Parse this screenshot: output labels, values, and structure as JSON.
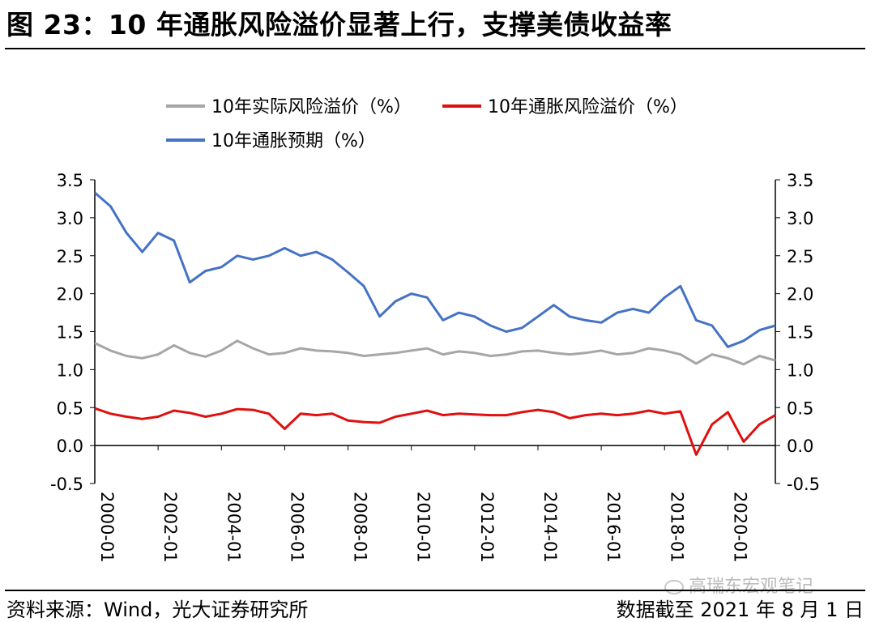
{
  "title": "图 23：10 年通胀风险溢价显著上行，支撑美债收益率",
  "source": "资料来源：Wind，光大证券研究所",
  "date_note": "数据截至 2021 年 8 月 1 日",
  "watermark": "高瑞东宏观笔记",
  "chart_data": {
    "type": "line",
    "x": [
      "2000-01",
      "2000-07",
      "2001-01",
      "2001-07",
      "2002-01",
      "2002-07",
      "2003-01",
      "2003-07",
      "2004-01",
      "2004-07",
      "2005-01",
      "2005-07",
      "2006-01",
      "2006-07",
      "2007-01",
      "2007-07",
      "2008-01",
      "2008-07",
      "2009-01",
      "2009-07",
      "2010-01",
      "2010-07",
      "2011-01",
      "2011-07",
      "2012-01",
      "2012-07",
      "2013-01",
      "2013-07",
      "2014-01",
      "2014-07",
      "2015-01",
      "2015-07",
      "2016-01",
      "2016-07",
      "2017-01",
      "2017-07",
      "2018-01",
      "2018-07",
      "2019-01",
      "2019-07",
      "2020-01",
      "2020-07",
      "2021-01",
      "2021-07"
    ],
    "x_ticks": [
      "2000-01",
      "2002-01",
      "2004-01",
      "2006-01",
      "2008-01",
      "2010-01",
      "2012-01",
      "2014-01",
      "2016-01",
      "2018-01",
      "2020-01"
    ],
    "series": [
      {
        "name": "10年实际风险溢价（%）",
        "color": "#a6a6a6",
        "values": [
          1.35,
          1.25,
          1.18,
          1.15,
          1.2,
          1.32,
          1.22,
          1.17,
          1.25,
          1.38,
          1.28,
          1.2,
          1.22,
          1.28,
          1.25,
          1.24,
          1.22,
          1.18,
          1.2,
          1.22,
          1.25,
          1.28,
          1.2,
          1.24,
          1.22,
          1.18,
          1.2,
          1.24,
          1.25,
          1.22,
          1.2,
          1.22,
          1.25,
          1.2,
          1.22,
          1.28,
          1.25,
          1.2,
          1.08,
          1.2,
          1.15,
          1.07,
          1.18,
          1.12
        ]
      },
      {
        "name": "10年通胀风险溢价（%）",
        "color": "#e01010",
        "values": [
          0.49,
          0.42,
          0.38,
          0.35,
          0.38,
          0.46,
          0.43,
          0.38,
          0.42,
          0.48,
          0.47,
          0.42,
          0.22,
          0.42,
          0.4,
          0.42,
          0.33,
          0.31,
          0.3,
          0.38,
          0.42,
          0.46,
          0.4,
          0.42,
          0.41,
          0.4,
          0.4,
          0.44,
          0.47,
          0.44,
          0.36,
          0.4,
          0.42,
          0.4,
          0.42,
          0.46,
          0.42,
          0.45,
          -0.12,
          0.28,
          0.44,
          0.05,
          0.28,
          0.4
        ]
      },
      {
        "name": "10年通胀预期（%）",
        "color": "#4472c4",
        "values": [
          3.33,
          3.15,
          2.8,
          2.55,
          2.8,
          2.7,
          2.15,
          2.3,
          2.35,
          2.5,
          2.45,
          2.5,
          2.6,
          2.5,
          2.55,
          2.45,
          2.28,
          2.1,
          1.7,
          1.9,
          2.0,
          1.95,
          1.65,
          1.75,
          1.7,
          1.58,
          1.5,
          1.55,
          1.7,
          1.85,
          1.7,
          1.65,
          1.62,
          1.75,
          1.8,
          1.75,
          1.95,
          2.1,
          1.65,
          1.58,
          1.3,
          1.38,
          1.52,
          1.58
        ]
      }
    ],
    "ylim": [
      -0.5,
      3.5
    ],
    "yticks": [
      "3.5",
      "3.0",
      "2.5",
      "2.0",
      "1.5",
      "1.0",
      "0.5",
      "0.0",
      "-0.5"
    ],
    "legend_position": "top"
  }
}
